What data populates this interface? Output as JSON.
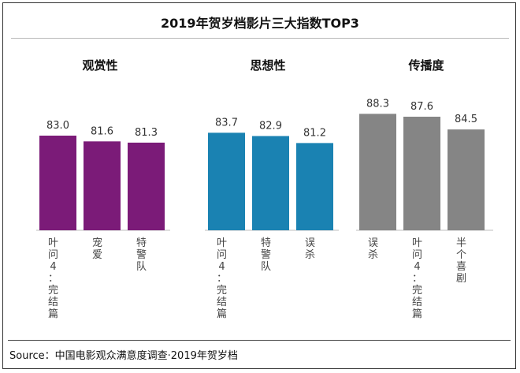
{
  "title": "2019年贺岁档影片三大指数TOP3",
  "source": "Source：中国电影观众满意度调查·2019年贺岁档",
  "chart_data": [
    {
      "type": "bar",
      "title": "观赏性",
      "color": "#7b1b78",
      "categories": [
        "叶问4：完结篇",
        "宠爱",
        "特警队"
      ],
      "values": [
        83.0,
        81.6,
        81.3
      ]
    },
    {
      "type": "bar",
      "title": "思想性",
      "color": "#1a82b2",
      "categories": [
        "叶问4：完结篇",
        "特警队",
        "误杀"
      ],
      "values": [
        83.7,
        82.9,
        81.2
      ]
    },
    {
      "type": "bar",
      "title": "传播度",
      "color": "#858585",
      "categories": [
        "误杀",
        "叶问4：完结篇",
        "半个喜剧"
      ],
      "values": [
        88.3,
        87.6,
        84.5
      ]
    }
  ]
}
